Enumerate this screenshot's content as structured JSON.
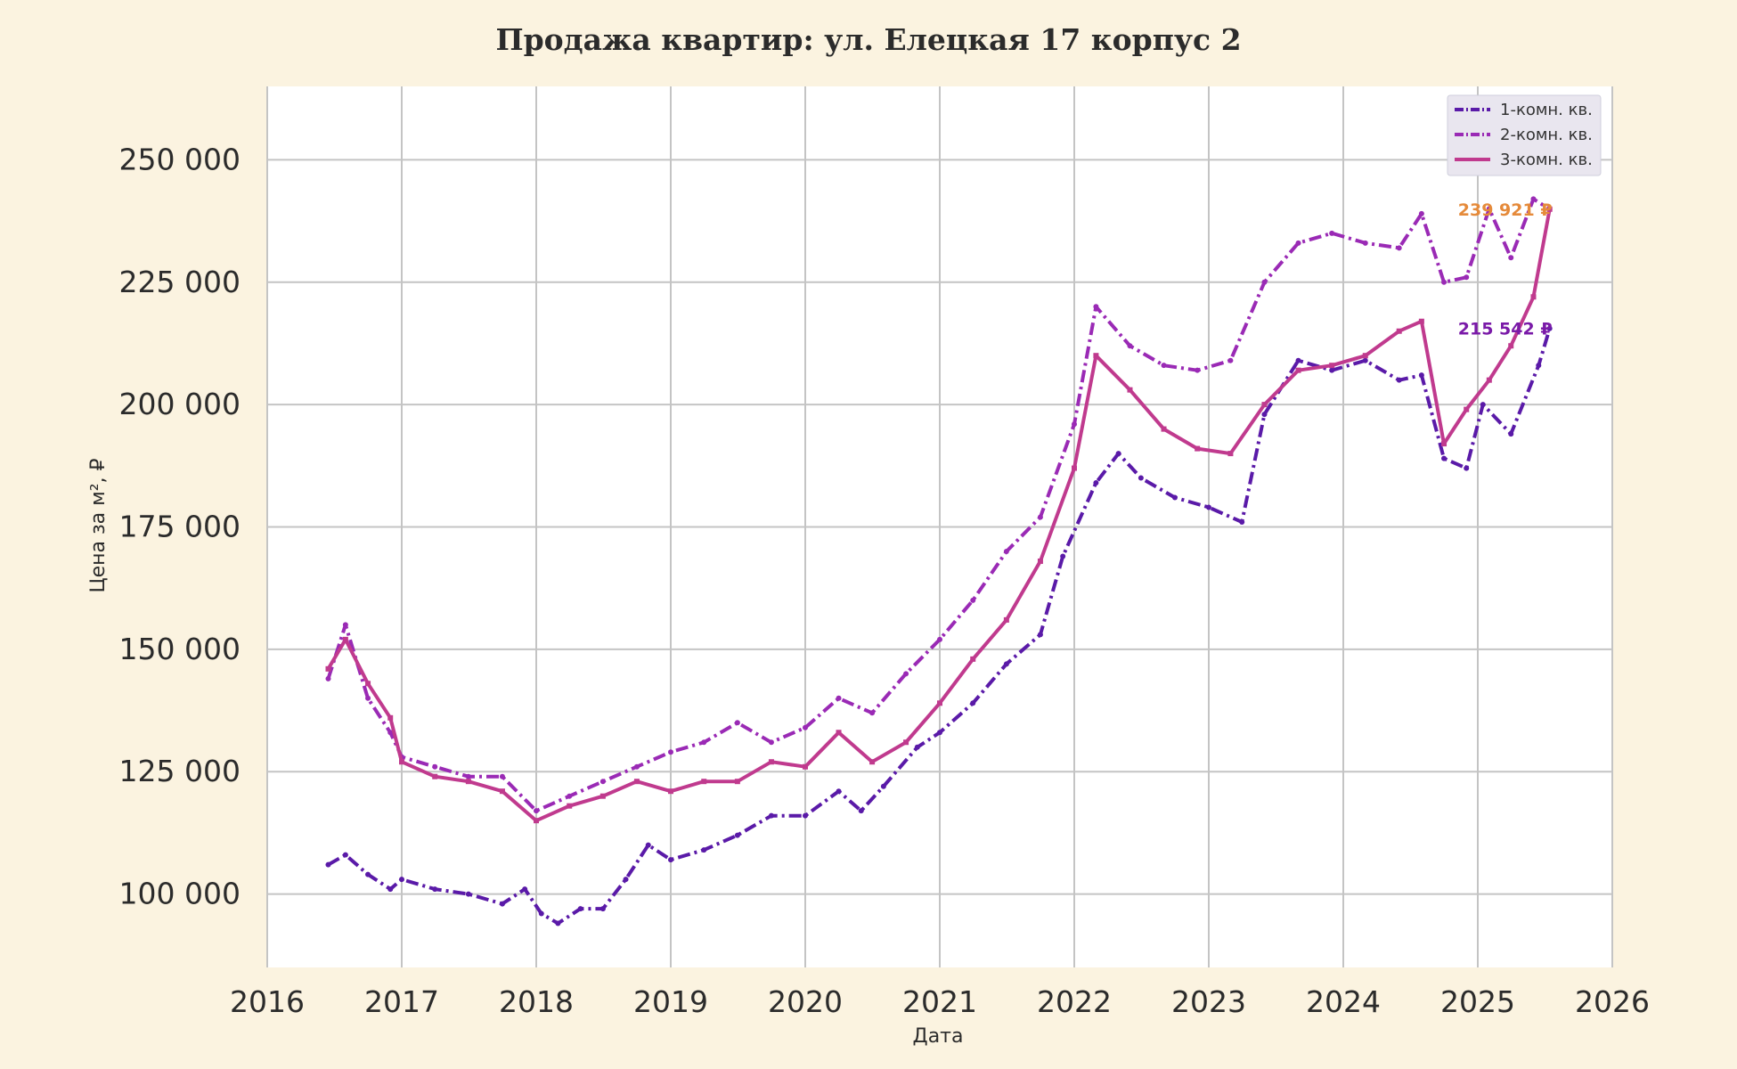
{
  "chart_data": {
    "type": "line",
    "title": "Продажа квартир: ул. Елецкая 17 корпус 2",
    "xlabel": "Дата",
    "ylabel": "Цена за м², ₽",
    "xlim": [
      "2016-01-01",
      "2026-01-01"
    ],
    "ylim": [
      85000,
      265000
    ],
    "x_ticks": [
      "2016",
      "2017",
      "2018",
      "2019",
      "2020",
      "2021",
      "2022",
      "2023",
      "2024",
      "2025",
      "2026"
    ],
    "y_ticks": [
      100000,
      125000,
      150000,
      175000,
      200000,
      225000,
      250000
    ],
    "y_tick_labels": [
      "100 000",
      "125 000",
      "150 000",
      "175 000",
      "200 000",
      "225 000",
      "250 000"
    ],
    "grid": true,
    "legend_position": "top-right",
    "series": [
      {
        "name": "1-комн. кв.",
        "color": "#5a1aa8",
        "style": "dash-dot",
        "points": [
          [
            "2016-06-15",
            106000
          ],
          [
            "2016-08-01",
            108000
          ],
          [
            "2016-10-01",
            104000
          ],
          [
            "2016-12-01",
            101000
          ],
          [
            "2017-01-01",
            103000
          ],
          [
            "2017-04-01",
            101000
          ],
          [
            "2017-07-01",
            100000
          ],
          [
            "2017-10-01",
            98000
          ],
          [
            "2017-12-01",
            101000
          ],
          [
            "2018-01-15",
            96000
          ],
          [
            "2018-03-01",
            94000
          ],
          [
            "2018-05-01",
            97000
          ],
          [
            "2018-07-01",
            97000
          ],
          [
            "2018-09-01",
            103000
          ],
          [
            "2018-11-01",
            110000
          ],
          [
            "2019-01-01",
            107000
          ],
          [
            "2019-04-01",
            109000
          ],
          [
            "2019-07-01",
            112000
          ],
          [
            "2019-10-01",
            116000
          ],
          [
            "2020-01-01",
            116000
          ],
          [
            "2020-04-01",
            121000
          ],
          [
            "2020-06-01",
            117000
          ],
          [
            "2020-08-01",
            122000
          ],
          [
            "2020-11-01",
            130000
          ],
          [
            "2021-01-01",
            133000
          ],
          [
            "2021-04-01",
            139000
          ],
          [
            "2021-07-01",
            147000
          ],
          [
            "2021-10-01",
            153000
          ],
          [
            "2021-12-01",
            169000
          ],
          [
            "2022-03-01",
            184000
          ],
          [
            "2022-05-01",
            190000
          ],
          [
            "2022-07-01",
            185000
          ],
          [
            "2022-10-01",
            181000
          ],
          [
            "2023-01-01",
            179000
          ],
          [
            "2023-04-01",
            176000
          ],
          [
            "2023-06-01",
            198000
          ],
          [
            "2023-09-01",
            209000
          ],
          [
            "2023-12-01",
            207000
          ],
          [
            "2024-03-01",
            209000
          ],
          [
            "2024-06-01",
            205000
          ],
          [
            "2024-08-01",
            206000
          ],
          [
            "2024-10-01",
            189000
          ],
          [
            "2024-12-01",
            187000
          ],
          [
            "2025-01-15",
            200000
          ],
          [
            "2025-04-01",
            194000
          ],
          [
            "2025-06-15",
            208000
          ],
          [
            "2025-07-15",
            215542
          ]
        ]
      },
      {
        "name": "2-комн. кв.",
        "color": "#9a2ab5",
        "style": "dash-dot",
        "points": [
          [
            "2016-06-15",
            144000
          ],
          [
            "2016-08-01",
            155000
          ],
          [
            "2016-10-01",
            140000
          ],
          [
            "2016-12-01",
            133000
          ],
          [
            "2017-01-01",
            128000
          ],
          [
            "2017-04-01",
            126000
          ],
          [
            "2017-07-01",
            124000
          ],
          [
            "2017-10-01",
            124000
          ],
          [
            "2018-01-01",
            117000
          ],
          [
            "2018-04-01",
            120000
          ],
          [
            "2018-07-01",
            123000
          ],
          [
            "2018-10-01",
            126000
          ],
          [
            "2019-01-01",
            129000
          ],
          [
            "2019-04-01",
            131000
          ],
          [
            "2019-07-01",
            135000
          ],
          [
            "2019-10-01",
            131000
          ],
          [
            "2020-01-01",
            134000
          ],
          [
            "2020-04-01",
            140000
          ],
          [
            "2020-07-01",
            137000
          ],
          [
            "2020-10-01",
            145000
          ],
          [
            "2021-01-01",
            152000
          ],
          [
            "2021-04-01",
            160000
          ],
          [
            "2021-07-01",
            170000
          ],
          [
            "2021-10-01",
            177000
          ],
          [
            "2022-01-01",
            196000
          ],
          [
            "2022-03-01",
            220000
          ],
          [
            "2022-06-01",
            212000
          ],
          [
            "2022-09-01",
            208000
          ],
          [
            "2022-12-01",
            207000
          ],
          [
            "2023-03-01",
            209000
          ],
          [
            "2023-06-01",
            225000
          ],
          [
            "2023-09-01",
            233000
          ],
          [
            "2023-12-01",
            235000
          ],
          [
            "2024-03-01",
            233000
          ],
          [
            "2024-06-01",
            232000
          ],
          [
            "2024-08-01",
            239000
          ],
          [
            "2024-10-01",
            225000
          ],
          [
            "2024-12-01",
            226000
          ],
          [
            "2025-02-01",
            240000
          ],
          [
            "2025-04-01",
            230000
          ],
          [
            "2025-06-01",
            242000
          ],
          [
            "2025-07-15",
            239921
          ]
        ]
      },
      {
        "name": "3-комн. кв.",
        "color": "#c03a8e",
        "style": "solid-square",
        "points": [
          [
            "2016-06-15",
            146000
          ],
          [
            "2016-08-01",
            152000
          ],
          [
            "2016-10-01",
            143000
          ],
          [
            "2016-12-01",
            136000
          ],
          [
            "2017-01-01",
            127000
          ],
          [
            "2017-04-01",
            124000
          ],
          [
            "2017-07-01",
            123000
          ],
          [
            "2017-10-01",
            121000
          ],
          [
            "2018-01-01",
            115000
          ],
          [
            "2018-04-01",
            118000
          ],
          [
            "2018-07-01",
            120000
          ],
          [
            "2018-10-01",
            123000
          ],
          [
            "2019-01-01",
            121000
          ],
          [
            "2019-04-01",
            123000
          ],
          [
            "2019-07-01",
            123000
          ],
          [
            "2019-10-01",
            127000
          ],
          [
            "2020-01-01",
            126000
          ],
          [
            "2020-04-01",
            133000
          ],
          [
            "2020-07-01",
            127000
          ],
          [
            "2020-10-01",
            131000
          ],
          [
            "2021-01-01",
            139000
          ],
          [
            "2021-04-01",
            148000
          ],
          [
            "2021-07-01",
            156000
          ],
          [
            "2021-10-01",
            168000
          ],
          [
            "2022-01-01",
            187000
          ],
          [
            "2022-03-01",
            210000
          ],
          [
            "2022-06-01",
            203000
          ],
          [
            "2022-09-01",
            195000
          ],
          [
            "2022-12-01",
            191000
          ],
          [
            "2023-03-01",
            190000
          ],
          [
            "2023-06-01",
            200000
          ],
          [
            "2023-09-01",
            207000
          ],
          [
            "2023-12-01",
            208000
          ],
          [
            "2024-03-01",
            210000
          ],
          [
            "2024-06-01",
            215000
          ],
          [
            "2024-08-01",
            217000
          ],
          [
            "2024-10-01",
            192000
          ],
          [
            "2024-12-01",
            199000
          ],
          [
            "2025-02-01",
            205000
          ],
          [
            "2025-04-01",
            212000
          ],
          [
            "2025-06-01",
            222000
          ],
          [
            "2025-07-15",
            239921
          ]
        ]
      }
    ],
    "annotations": [
      {
        "text": "239 921 ₽",
        "x": "2025-07-15",
        "y": 239921,
        "color": "#e58a3a"
      },
      {
        "text": "215 542 ₽",
        "x": "2025-07-15",
        "y": 215542,
        "color": "#7a1aa8"
      }
    ]
  }
}
